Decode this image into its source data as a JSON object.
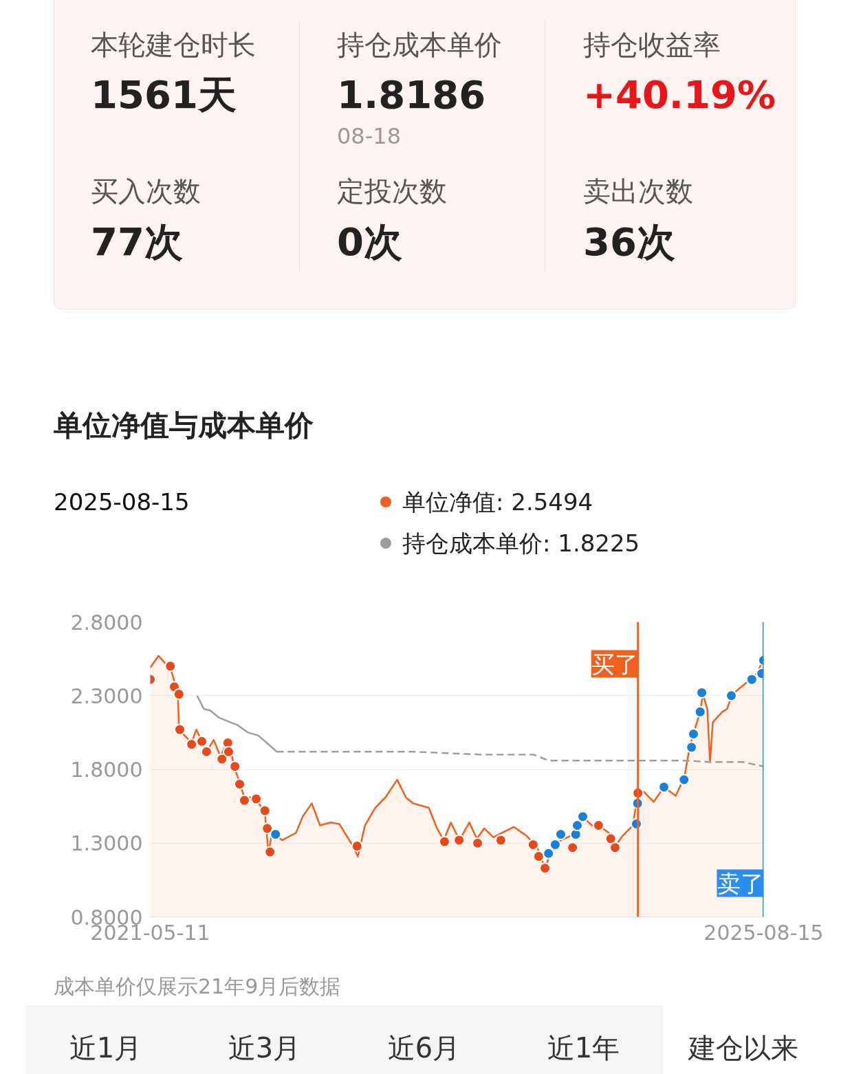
{
  "chart_data": [
    {
      "type": "other",
      "annotations": [
        "本轮建仓时长",
        "1561天",
        "持仓成本单价",
        "1.8186",
        "08-18",
        "持仓收益率",
        "+40.19%",
        "买入次数",
        "77次",
        "定投次数",
        "0次",
        "卖出次数",
        "36次"
      ]
    },
    {
      "type": "line",
      "title": "单位净值与成本单价",
      "annotations": [
        "2025-08-15",
        "成本单价仅展示21年9月后数据"
      ],
      "series": [
        {
          "name": "单位净值: 2.5494",
          "type": "area",
          "color": "#f0601e",
          "x": [
            "2021-05-11",
            "2021-06-01",
            "2021-06-18",
            "2021-07-01",
            "2021-07-20",
            "2021-07-23",
            "2021-08-24",
            "2021-09-05",
            "2021-10-01",
            "2021-10-19",
            "2021-11-05",
            "2021-11-26",
            "2021-12-10",
            "2022-01-05",
            "2022-01-31",
            "2022-02-26",
            "2022-03-07",
            "2022-03-16",
            "2022-04-11",
            "2022-05-16",
            "2022-06-02",
            "2022-06-25",
            "2022-07-16",
            "2022-08-11",
            "2022-09-03",
            "2022-10-03",
            "2022-10-20",
            "2022-11-07",
            "2022-12-03",
            "2022-12-29",
            "2023-01-28",
            "2023-02-19",
            "2023-03-09",
            "2023-04-18",
            "2023-05-09",
            "2023-05-26",
            "2023-06-13",
            "2023-07-05",
            "2023-07-30",
            "2023-08-18",
            "2023-09-06",
            "2023-09-29",
            "2023-11-20",
            "2023-12-22",
            "2024-01-17",
            "2024-02-07",
            "2024-02-21",
            "2024-03-18",
            "2024-04-13",
            "2024-05-13",
            "2024-06-05",
            "2024-06-22",
            "2024-07-18",
            "2024-08-01",
            "2024-08-22",
            "2024-09-17",
            "2024-09-30",
            "2024-10-14",
            "2024-11-09",
            "2024-12-05",
            "2025-01-04",
            "2025-01-26",
            "2025-02-09",
            "2025-02-21",
            "2025-03-07",
            "2025-03-14",
            "2025-03-25",
            "2025-04-01",
            "2025-04-08",
            "2025-05-02",
            "2025-05-14",
            "2025-05-28",
            "2025-06-15",
            "2025-07-08",
            "2025-07-29",
            "2025-08-15"
          ],
          "values": [
            2.49,
            2.57,
            2.52,
            2.49,
            2.32,
            2.07,
            1.98,
            2.07,
            1.92,
            2.0,
            1.89,
            2.0,
            1.82,
            1.61,
            1.61,
            1.51,
            1.23,
            1.37,
            1.32,
            1.37,
            1.48,
            1.57,
            1.42,
            1.44,
            1.43,
            1.3,
            1.21,
            1.42,
            1.54,
            1.61,
            1.73,
            1.61,
            1.57,
            1.54,
            1.4,
            1.32,
            1.44,
            1.32,
            1.44,
            1.33,
            1.4,
            1.34,
            1.41,
            1.35,
            1.28,
            1.13,
            1.23,
            1.32,
            1.35,
            1.48,
            1.42,
            1.42,
            1.37,
            1.27,
            1.35,
            1.42,
            1.64,
            1.65,
            1.58,
            1.68,
            1.62,
            1.75,
            1.96,
            2.07,
            2.19,
            2.31,
            2.21,
            1.85,
            2.12,
            2.19,
            2.21,
            2.31,
            2.35,
            2.4,
            2.45,
            2.55
          ]
        },
        {
          "name": "持仓成本单价: 1.8225",
          "color": "#9e9e9e",
          "line_style": "solid",
          "x": [
            "2021-09-07",
            "2021-09-24",
            "2021-10-10",
            "2021-11-02",
            "2021-12-19",
            "2022-01-14",
            "2022-02-09",
            "2022-03-07",
            "2022-03-28"
          ],
          "values": [
            2.3,
            2.21,
            2.2,
            2.15,
            2.1,
            2.05,
            2.03,
            1.97,
            1.92
          ]
        },
        {
          "color": "#9e9e9e",
          "line_style": "dashed",
          "x": [
            "2022-03-28",
            "2023-03-09",
            "2023-08-30",
            "2024-01-10",
            "2024-02-16",
            "2024-04-13",
            "2025-02-04",
            "2025-03-28",
            "2025-06-24",
            "2025-08-15"
          ],
          "values": [
            1.92,
            1.92,
            1.9,
            1.9,
            1.86,
            1.86,
            1.86,
            1.85,
            1.85,
            1.82
          ]
        },
        {
          "type": "scatter",
          "color": "#e8491a",
          "x": [
            "2021-05-11",
            "2021-07-01",
            "2021-07-11",
            "2021-07-23",
            "2021-07-25",
            "2021-08-24",
            "2021-09-19",
            "2021-10-01",
            "2021-11-02",
            "2021-11-09",
            "2021-11-24",
            "2021-11-26",
            "2021-12-12",
            "2021-12-24",
            "2022-01-05",
            "2022-02-04",
            "2022-02-26",
            "2022-03-04",
            "2022-03-11",
            "2022-04-01",
            "2022-10-18",
            "2023-05-28",
            "2023-07-04",
            "2023-08-20",
            "2023-10-18",
            "2024-01-08",
            "2024-01-22",
            "2024-02-07",
            "2024-04-17",
            "2024-06-22",
            "2024-07-23",
            "2024-08-03",
            "2024-09-30"
          ],
          "values": [
            2.41,
            2.5,
            2.36,
            2.31,
            2.07,
            1.97,
            1.99,
            1.92,
            null,
            1.87,
            1.98,
            1.92,
            1.82,
            1.7,
            1.59,
            1.6,
            1.52,
            1.4,
            1.24,
            null,
            1.28,
            1.31,
            1.32,
            1.3,
            1.32,
            1.29,
            1.21,
            1.13,
            1.27,
            1.42,
            1.33,
            1.27,
            1.64
          ]
        },
        {
          "type": "scatter",
          "color": "#1a7fd9",
          "x": [
            "2022-03-25",
            "2024-02-16",
            "2024-03-04",
            "2024-03-18",
            "2024-04-25",
            "2024-04-29",
            "2024-05-13",
            "2024-09-26",
            "2024-09-29",
            "2024-12-05",
            "2025-01-25",
            "2025-02-13",
            "2025-02-18",
            "2025-03-07",
            "2025-03-11",
            "2025-05-25",
            "2025-07-16",
            "2025-08-10",
            "2025-08-15"
          ],
          "values": [
            1.36,
            1.23,
            1.29,
            1.36,
            1.36,
            1.42,
            1.48,
            1.43,
            1.57,
            1.68,
            1.73,
            1.95,
            2.04,
            2.19,
            2.32,
            2.3,
            2.41,
            2.45,
            2.54
          ]
        }
      ],
      "xlim": [
        "2021-05-11",
        "2025-08-15"
      ],
      "xticks": [
        "2021-05-11",
        "2025-08-15"
      ],
      "ylim": [
        0.8,
        2.8
      ],
      "yticks": [
        {
          "value": 0.8,
          "label": "0.8000"
        },
        {
          "value": 1.3,
          "label": "1.3000"
        },
        {
          "value": 1.8,
          "label": "1.8000"
        },
        {
          "value": 2.3,
          "label": "2.3000"
        },
        {
          "value": 2.8,
          "label": "2.8000"
        }
      ],
      "grid": "y",
      "legend": "top",
      "ref_lines": [
        {
          "axis": "x",
          "value": "2024-09-30",
          "label": "买了",
          "color": "#f0601e"
        },
        {
          "axis": "x",
          "value": "2025-08-15",
          "label": "卖了",
          "color": "#2d8cf0"
        }
      ]
    },
    {
      "type": "other",
      "annotations": [
        "近1月",
        "近3月",
        "近6月",
        "近1年",
        "建仓以来"
      ]
    }
  ]
}
